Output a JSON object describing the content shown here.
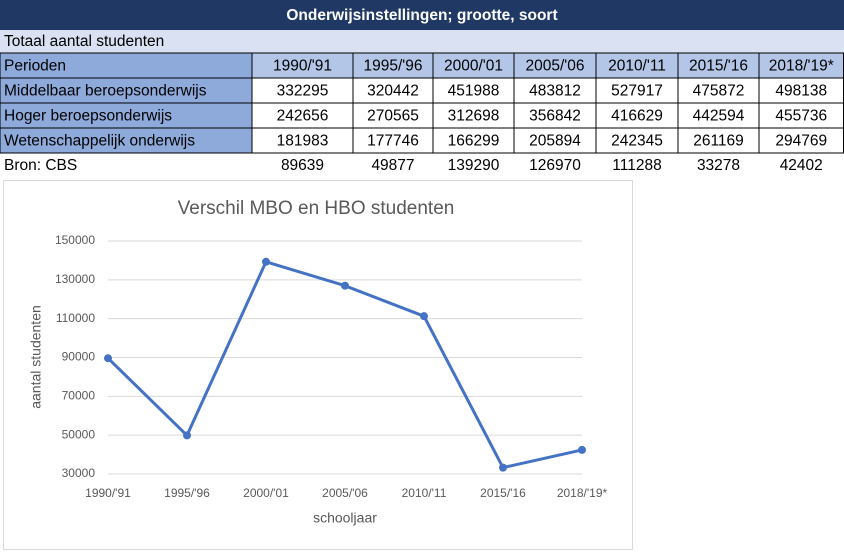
{
  "table": {
    "title": "Onderwijsinstellingen; grootte, soort",
    "subtitle": "Totaal aantal studenten",
    "header": [
      "Perioden",
      "1990/'91",
      "1995/'96",
      "2000/'01",
      "2005/'06",
      "2010/'11",
      "2015/'16",
      "2018/'19*"
    ],
    "rows": [
      [
        "Middelbaar beroepsonderwijs",
        332295,
        320442,
        451988,
        483812,
        527917,
        475872,
        498138
      ],
      [
        "Hoger beroepsonderwijs",
        242656,
        270565,
        312698,
        356842,
        416629,
        442594,
        455736
      ],
      [
        "Wetenschappelijk onderwijs",
        181983,
        177746,
        166299,
        205894,
        242345,
        261169,
        294769
      ]
    ],
    "footer": [
      "Bron: CBS",
      89639,
      49877,
      139290,
      126970,
      111288,
      33278,
      42402
    ]
  },
  "chart_data": {
    "type": "line",
    "title": "Verschil MBO en HBO studenten",
    "categories": [
      "1990/'91",
      "1995/'96",
      "2000/'01",
      "2005/'06",
      "2010/'11",
      "2015/'16",
      "2018/'19*"
    ],
    "values": [
      89639,
      49877,
      139290,
      126970,
      111288,
      33278,
      42402
    ],
    "color": "#4472c4",
    "xlabel": "schooljaar",
    "ylabel": "aantal studenten",
    "ylim": [
      30000,
      150000
    ],
    "yticks": [
      30000,
      50000,
      70000,
      90000,
      110000,
      130000,
      150000
    ],
    "grid": true
  }
}
